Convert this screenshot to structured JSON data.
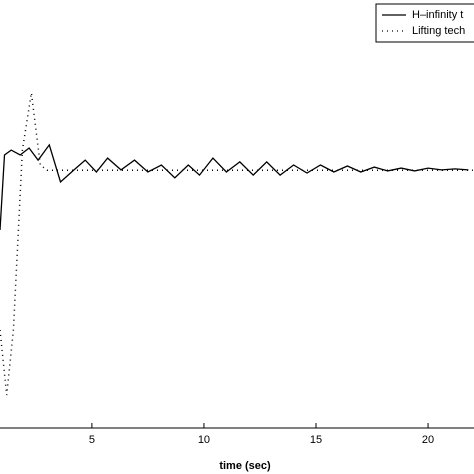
{
  "chart_data": {
    "type": "line",
    "xlabel": "time (sec)",
    "xlim": [
      0.9,
      22.05
    ],
    "xticks": [
      5,
      10,
      15,
      20
    ],
    "ylim": [
      0,
      1.66
    ],
    "series": [
      {
        "name": "H–infinity t",
        "color": "#000000",
        "dash": "solid",
        "x": [
          0.9,
          1.1,
          1.4,
          1.8,
          2.2,
          2.6,
          3.1,
          3.6,
          4.2,
          4.7,
          5.2,
          5.7,
          6.3,
          6.9,
          7.5,
          8.1,
          8.7,
          9.3,
          9.8,
          10.4,
          11,
          11.6,
          12.2,
          12.8,
          13.4,
          14,
          14.6,
          15.2,
          15.8,
          16.4,
          17,
          17.6,
          18.2,
          18.8,
          19.4,
          20,
          20.6,
          21.2,
          21.8
        ],
        "values": [
          0.768,
          1.059,
          1.078,
          1.059,
          1.086,
          1.039,
          1.098,
          0.954,
          1.001,
          1.039,
          0.993,
          1.047,
          1.001,
          1.039,
          0.993,
          1.02,
          0.97,
          1.02,
          0.981,
          1.047,
          0.993,
          1.032,
          0.981,
          1.032,
          0.981,
          1.02,
          0.989,
          1.02,
          0.993,
          1.016,
          0.993,
          1.012,
          0.997,
          1.008,
          0.997,
          1.008,
          1.001,
          1.005,
          1.001
        ]
      },
      {
        "name": "Lifting tech",
        "color": "#000000",
        "dash": "dotted",
        "x": [
          0.9,
          1.2,
          1.5,
          1.9,
          2.3,
          2.7,
          3,
          22
        ],
        "values": [
          0.38,
          0.128,
          0.38,
          1.078,
          1.3,
          1.02,
          1.0,
          1.0
        ]
      }
    ]
  }
}
